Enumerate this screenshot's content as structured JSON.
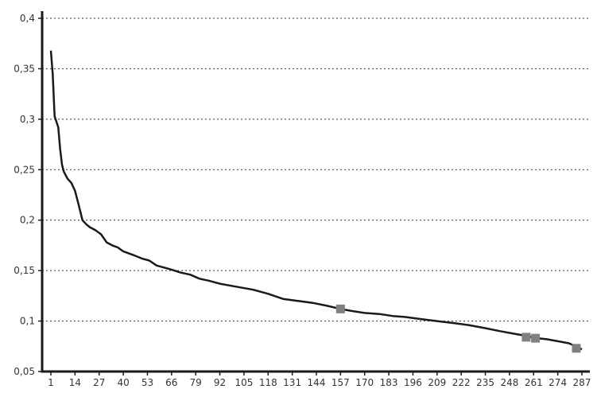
{
  "chart_data": {
    "type": "line",
    "title": "",
    "xlabel": "",
    "ylabel": "",
    "ylim": [
      0.05,
      0.4
    ],
    "xlim": [
      1,
      287
    ],
    "yticks": [
      0.05,
      0.1,
      0.15,
      0.2,
      0.25,
      0.3,
      0.35,
      0.4
    ],
    "ytick_labels": [
      "0,05",
      "0,1",
      "0,15",
      "0,2",
      "0,25",
      "0,3",
      "0,35",
      "0,4"
    ],
    "xticks": [
      1,
      14,
      27,
      40,
      53,
      66,
      79,
      92,
      105,
      118,
      131,
      144,
      157,
      170,
      183,
      196,
      209,
      222,
      235,
      248,
      261,
      274,
      287
    ],
    "xtick_labels": [
      "1",
      "14",
      "27",
      "40",
      "53",
      "66",
      "79",
      "92",
      "105",
      "118",
      "131",
      "144",
      "157",
      "170",
      "183",
      "196",
      "209",
      "222",
      "235",
      "248",
      "261",
      "274",
      "287"
    ],
    "grid": "horizontal dotted",
    "series": [
      {
        "color": "#1a1a1a",
        "x": [
          1,
          2,
          3,
          5,
          6,
          7,
          8,
          10,
          12,
          14,
          16,
          18,
          20,
          22,
          25,
          28,
          31,
          34,
          37,
          40,
          43,
          46,
          50,
          54,
          58,
          62,
          66,
          71,
          76,
          81,
          86,
          92,
          98,
          104,
          110,
          118,
          126,
          134,
          142,
          150,
          157,
          163,
          170,
          178,
          185,
          192,
          200,
          209,
          218,
          226,
          235,
          243,
          252,
          258,
          263,
          268,
          274,
          280,
          285,
          287
        ],
        "y": [
          0.368,
          0.345,
          0.303,
          0.292,
          0.27,
          0.255,
          0.248,
          0.241,
          0.237,
          0.229,
          0.215,
          0.2,
          0.196,
          0.193,
          0.19,
          0.186,
          0.178,
          0.175,
          0.173,
          0.169,
          0.167,
          0.165,
          0.162,
          0.16,
          0.155,
          0.153,
          0.151,
          0.148,
          0.146,
          0.142,
          0.14,
          0.137,
          0.135,
          0.133,
          0.131,
          0.127,
          0.122,
          0.12,
          0.118,
          0.115,
          0.112,
          0.11,
          0.108,
          0.107,
          0.105,
          0.104,
          0.102,
          0.1,
          0.098,
          0.096,
          0.093,
          0.09,
          0.087,
          0.085,
          0.083,
          0.082,
          0.08,
          0.078,
          0.074,
          0.072
        ]
      }
    ],
    "highlighted_points": [
      {
        "x": 157,
        "y": 0.112
      },
      {
        "x": 257,
        "y": 0.084
      },
      {
        "x": 262,
        "y": 0.083
      },
      {
        "x": 284,
        "y": 0.073
      }
    ],
    "colors": {
      "line": "#1a1a1a",
      "marker": "#808080",
      "grid": "#333333",
      "text": "#333333"
    }
  }
}
